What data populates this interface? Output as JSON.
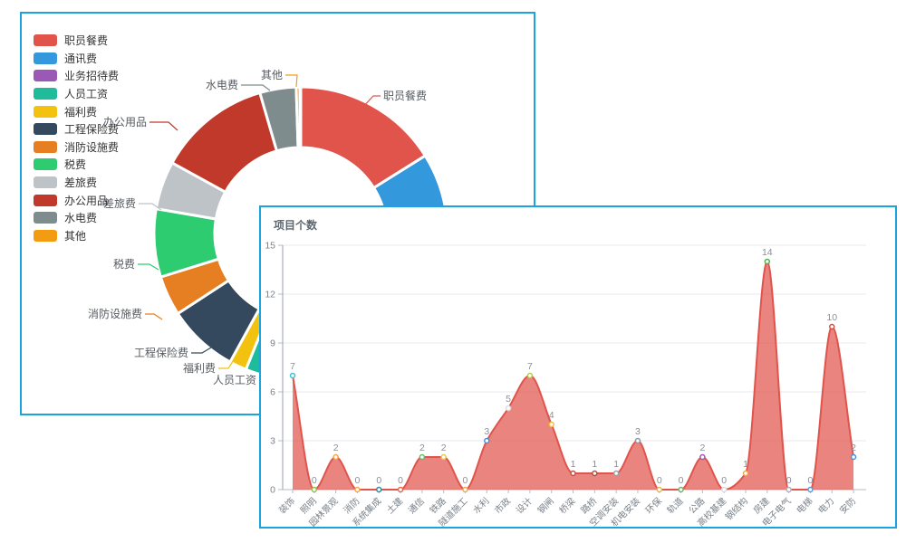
{
  "ui": {
    "card_border_color": "#1aa3dc",
    "area_chart_title": "项目个数"
  },
  "chart_data": [
    {
      "type": "pie",
      "subtype": "donut",
      "title": "",
      "legend_position": "left",
      "labels": [
        "职员餐费",
        "通讯费",
        "业务招待费",
        "人员工资",
        "福利费",
        "工程保险费",
        "消防设施费",
        "税费",
        "差旅费",
        "办公用品",
        "水电费",
        "其他"
      ],
      "colors": [
        "#e1544b",
        "#3398dc",
        "#9b59b6",
        "#1fbc9c",
        "#f2c20e",
        "#34495e",
        "#e67e22",
        "#2ecc71",
        "#bdc3c7",
        "#c0392b",
        "#7f8c8d",
        "#f39c12"
      ],
      "percent": [
        16.1,
        13.9,
        1.7,
        24.4,
        1.9,
        7.8,
        4.4,
        7.5,
        5.3,
        12.5,
        4.0,
        0.4
      ],
      "callout_labels_visible": [
        "职员餐费",
        "人员工资",
        "福利费",
        "工程保险费",
        "消防设施费",
        "税费",
        "差旅费",
        "办公用品",
        "水电费",
        "其他"
      ]
    },
    {
      "type": "area",
      "title": "项目个数",
      "categories": [
        "装饰",
        "照明",
        "园林景观",
        "消防",
        "系统集成",
        "土建",
        "通信",
        "铁路",
        "隧道施工",
        "水利",
        "市政",
        "设计",
        "钢闸",
        "桥梁",
        "路桥",
        "空调安装",
        "机电安装",
        "环保",
        "轨道",
        "公路",
        "高校基建",
        "钢结构",
        "房建",
        "电子电气",
        "电梯",
        "电力",
        "安防"
      ],
      "values": [
        7,
        0,
        2,
        0,
        0,
        0,
        2,
        2,
        0,
        3,
        5,
        7,
        4,
        1,
        1,
        1,
        3,
        0,
        0,
        2,
        0,
        1,
        14,
        0,
        0,
        10,
        2
      ],
      "ylim": [
        0,
        15
      ],
      "yticks": [
        0,
        3,
        6,
        9,
        12,
        15
      ],
      "grid": true,
      "smooth": true,
      "line_color": "#e0544c",
      "fill_color": "#e0544c",
      "fill_opacity": 0.72,
      "value_label_color": "#8a8f99",
      "axis_label_color": "#7a828a",
      "point_colors": [
        "#3bc0d4",
        "#8bc34a",
        "#f5a54a",
        "#f5a54a",
        "#2e8b9a",
        "#e06a50",
        "#66bb6a",
        "#e6c84a",
        "#f5a54a",
        "#4a90d9",
        "#d9dde2",
        "#aed04e",
        "#f0c040",
        "#c05046",
        "#a8524a",
        "#9aa0a8",
        "#8a99a5",
        "#e6b84a",
        "#66bb6a",
        "#9b59b6",
        "#d9dde2",
        "#f5a54a",
        "#4caf50",
        "#aab2ba",
        "#5b9bd5",
        "#d05048",
        "#4a90d9"
      ]
    }
  ]
}
